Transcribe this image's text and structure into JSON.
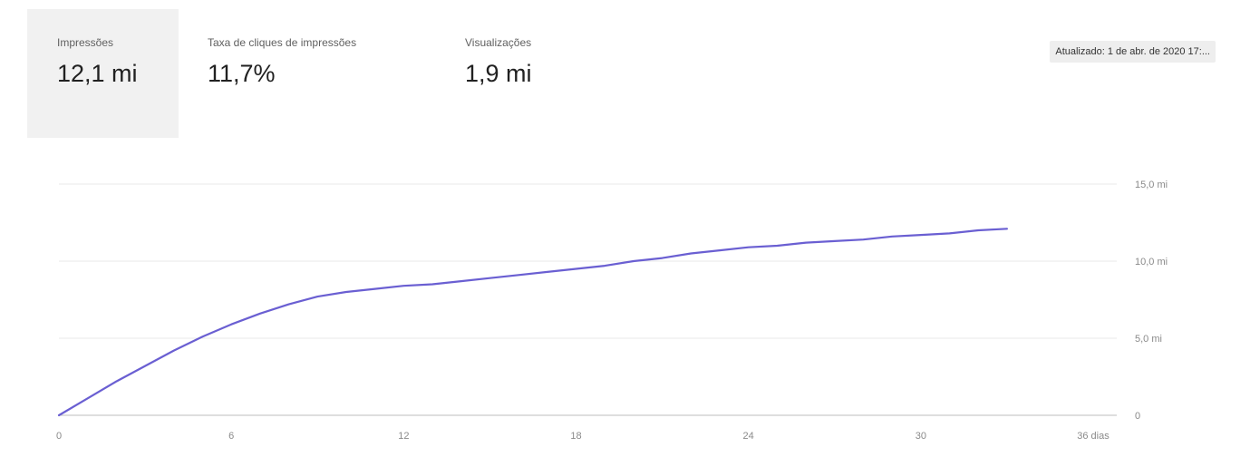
{
  "metrics": [
    {
      "label": "Impressões",
      "value": "12,1 mi",
      "active": true
    },
    {
      "label": "Taxa de cliques de impressões",
      "value": "11,7%",
      "active": false
    },
    {
      "label": "Visualizações",
      "value": "1,9 mi",
      "active": false
    }
  ],
  "updated_label": "Atualizado: 1 de abr. de 2020 17:...",
  "colors": {
    "line": "#6a5fd2",
    "grid": "#e8e8e8",
    "baseline": "#bdbdbd",
    "active_tab": "#f1f1f1"
  },
  "chart_data": {
    "type": "line",
    "title": "",
    "xlabel": "",
    "ylabel": "",
    "x_unit_label": "36 dias",
    "xlim": [
      0,
      36
    ],
    "ylim": [
      0,
      15
    ],
    "x_ticks": [
      0,
      6,
      12,
      18,
      24,
      30,
      36
    ],
    "x_tick_labels": [
      "0",
      "6",
      "12",
      "18",
      "24",
      "30",
      "36 dias"
    ],
    "y_ticks": [
      0,
      5,
      10,
      15
    ],
    "y_tick_labels": [
      "0",
      "5,0 mi",
      "10,0 mi",
      "15,0 mi"
    ],
    "grid": true,
    "series": [
      {
        "x": [
          0,
          1,
          2,
          3,
          4,
          5,
          6,
          7,
          8,
          9,
          10,
          11,
          12,
          13,
          14,
          15,
          16,
          17,
          18,
          19,
          20,
          21,
          22,
          23,
          24,
          25,
          26,
          27,
          28,
          29,
          30,
          31,
          32,
          33
        ],
        "values": [
          0.0,
          1.1,
          2.2,
          3.2,
          4.2,
          5.1,
          5.9,
          6.6,
          7.2,
          7.7,
          8.0,
          8.2,
          8.4,
          8.5,
          8.7,
          8.9,
          9.1,
          9.3,
          9.5,
          9.7,
          10.0,
          10.2,
          10.5,
          10.7,
          10.9,
          11.0,
          11.2,
          11.3,
          11.4,
          11.6,
          11.7,
          11.8,
          12.0,
          12.1
        ]
      }
    ]
  }
}
